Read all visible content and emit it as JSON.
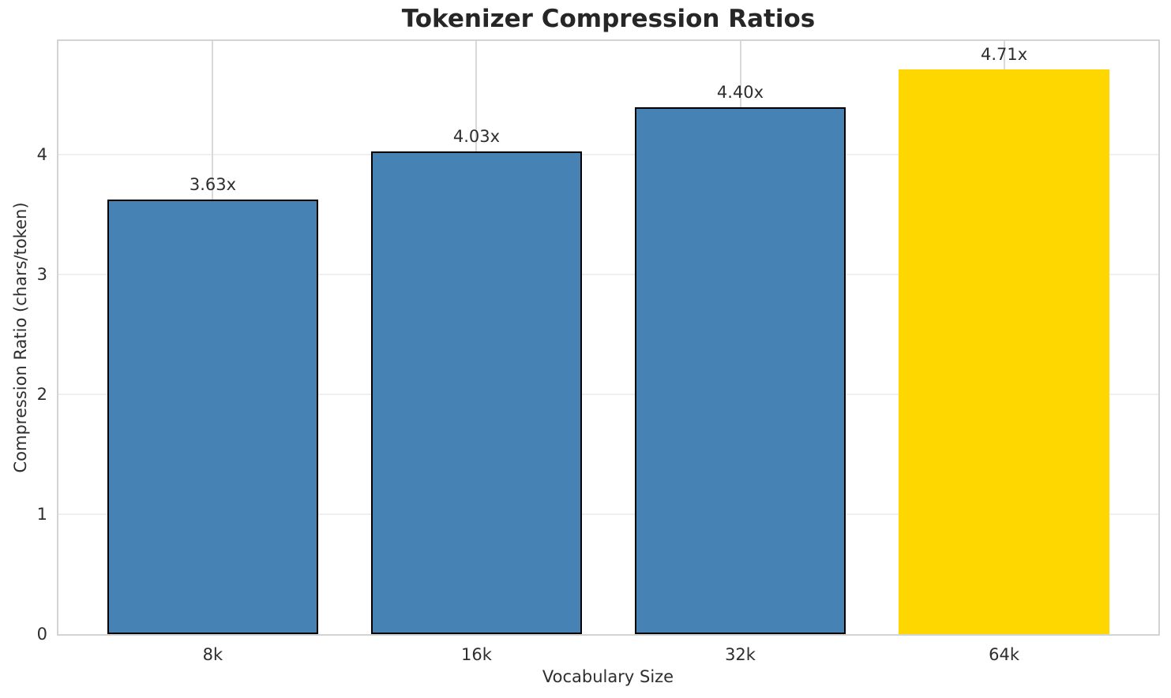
{
  "chart_data": {
    "type": "bar",
    "title": "Tokenizer Compression Ratios",
    "xlabel": "Vocabulary Size",
    "ylabel": "Compression Ratio (chars/token)",
    "categories": [
      "8k",
      "16k",
      "32k",
      "64k"
    ],
    "values": [
      3.63,
      4.03,
      4.4,
      4.71
    ],
    "bar_labels": [
      "3.63x",
      "4.03x",
      "4.40x",
      "4.71x"
    ],
    "bar_colors": [
      "#4682B4",
      "#4682B4",
      "#4682B4",
      "#FFD700"
    ],
    "bar_edge_colors": [
      "#000000",
      "#000000",
      "#000000",
      "#FFD700"
    ],
    "highlighted_category": "64k",
    "yticks": [
      "0",
      "1",
      "2",
      "3",
      "4"
    ],
    "ytick_values": [
      0,
      1,
      2,
      3,
      4
    ],
    "ylim": [
      0,
      4.95
    ],
    "grid": true,
    "legend_position": "none"
  },
  "style": {
    "bar_default_color": "#4682B4",
    "bar_highlight_color": "#FFD700",
    "bar_edge_color": "#000000",
    "grid_color_horizontal": "#efefef",
    "grid_color_vertical": "#d9d9d9",
    "spine_color": "#d3d3d3",
    "title_color": "#262626",
    "text_color": "#2e2e2e",
    "background_color": "#ffffff"
  }
}
